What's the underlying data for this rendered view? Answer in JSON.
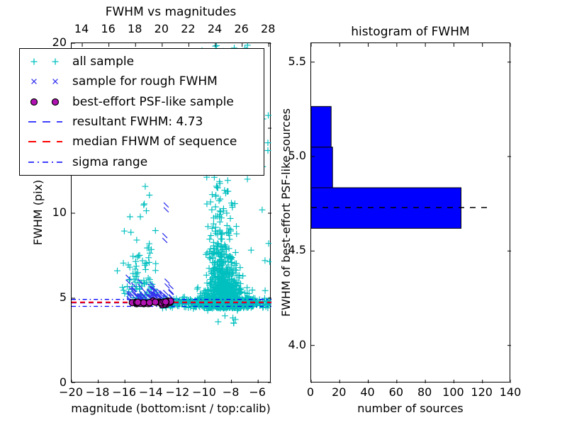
{
  "figure": {
    "background": "#ffffff"
  },
  "chart_data": [
    {
      "type": "scatter",
      "title": "FWHM vs magnitudes",
      "xlabel": "magnitude (bottom:isnt / top:calib)",
      "ylabel": "FWHM (pix)",
      "xlim": [
        -20,
        -5
      ],
      "ylim": [
        0,
        20
      ],
      "xticks": [
        -20,
        -18,
        -16,
        -14,
        -12,
        -10,
        -8,
        -6
      ],
      "xtick_labels": [
        "−20",
        "−18",
        "−16",
        "−14",
        "−12",
        "−10",
        "−8",
        "−6"
      ],
      "yticks": [
        0,
        5,
        10,
        15,
        20
      ],
      "ytick_labels": [
        "0",
        "5",
        "10",
        "15",
        "20"
      ],
      "top_axis": {
        "xlim": [
          13.2,
          28.2
        ],
        "ticks": [
          14,
          16,
          18,
          20,
          22,
          24,
          26,
          28
        ],
        "tick_labels": [
          "14",
          "16",
          "18",
          "20",
          "22",
          "24",
          "26",
          "28"
        ]
      },
      "grid": false,
      "legend_position": "upper left",
      "seed": 20250101,
      "series": [
        {
          "label": "all sample",
          "marker": "plus",
          "color": "#00bfbf",
          "clusters": [
            {
              "n": 620,
              "x": {
                "dist": "normal",
                "mu": -8.55,
                "sigma": 0.8,
                "min": -11.2,
                "max": -5.2
              },
              "y": {
                "dist": "exp",
                "offset": 4.42,
                "scale": 0.6,
                "max": 13
              }
            },
            {
              "n": 300,
              "x": {
                "dist": "normal",
                "mu": -8.7,
                "sigma": 0.55,
                "min": -10.2,
                "max": -6.6
              },
              "y": {
                "dist": "exp",
                "offset": 5.2,
                "scale": 2.2,
                "max": 13.5
              }
            },
            {
              "n": 300,
              "x": {
                "dist": "uniform",
                "min": -13.2,
                "max": -5.1
              },
              "y": {
                "dist": "normal",
                "mu": 4.72,
                "sigma": 0.16,
                "min": 4.25,
                "max": 5.4
              }
            },
            {
              "n": 90,
              "x": {
                "dist": "normal",
                "mu": -14.7,
                "sigma": 0.95,
                "min": -16.6,
                "max": -12.2
              },
              "y": {
                "dist": "exp",
                "offset": 4.9,
                "scale": 1.6,
                "max": 11.8
              }
            },
            {
              "n": 55,
              "x": {
                "dist": "normal",
                "mu": -8.8,
                "sigma": 1.4,
                "min": -11.8,
                "max": -5.3
              },
              "y": {
                "dist": "uniform",
                "min": 12,
                "max": 19.6
              }
            },
            {
              "n": 14,
              "x": {
                "dist": "normal",
                "mu": -8.7,
                "sigma": 1.1,
                "min": -10.8,
                "max": -6.2
              },
              "y": {
                "dist": "uniform",
                "min": 19.3,
                "max": 20.0
              }
            },
            {
              "n": 7,
              "x": {
                "dist": "uniform",
                "min": -10.6,
                "max": -7.2
              },
              "y": {
                "dist": "uniform",
                "min": 3.5,
                "max": 4.3
              }
            },
            {
              "n": 10,
              "x": {
                "dist": "uniform",
                "min": -5.85,
                "max": -5.05
              },
              "y": {
                "dist": "uniform",
                "min": 4.3,
                "max": 16.5
              }
            }
          ],
          "points": []
        },
        {
          "label": "sample for rough FWHM",
          "marker": "cross",
          "color": "#3333ee",
          "clusters": [
            {
              "n": 48,
              "x": {
                "dist": "normal",
                "mu": -14.2,
                "sigma": 1.0,
                "min": -16.3,
                "max": -12.35
              },
              "y": {
                "dist": "exp",
                "offset": 4.78,
                "scale": 0.28,
                "max": 5.75
              }
            }
          ],
          "points": [
            [
              -12.9,
              10.2
            ],
            [
              -13.0,
              8.4
            ],
            [
              -15.75,
              5.95
            ],
            [
              -12.55,
              5.4
            ],
            [
              -14.85,
              5.7
            ]
          ]
        },
        {
          "label": "best-effort PSF-like sample",
          "marker": "circle",
          "color": "#b312b3",
          "edge_color": "#000000",
          "clusters": [
            {
              "n": 30,
              "x": {
                "dist": "uniform",
                "min": -15.45,
                "max": -12.55
              },
              "y": {
                "dist": "normal",
                "mu": 4.72,
                "sigma": 0.055,
                "min": 4.6,
                "max": 4.85
              }
            }
          ],
          "points": []
        }
      ],
      "hlines": [
        {
          "label": "resultant FWHM: 4.73",
          "ys": [
            4.73
          ],
          "color": "#0000ff",
          "style": "dashed",
          "width": 1.5
        },
        {
          "label": "median FHWM of sequence",
          "ys": [
            4.76
          ],
          "color": "#ff0000",
          "style": "dashed",
          "width": 2
        },
        {
          "label": "sigma range",
          "ys": [
            4.52,
            4.93
          ],
          "color": "#0000ff",
          "style": "dashdot",
          "width": 1.3
        }
      ]
    },
    {
      "type": "bar",
      "orientation": "horizontal",
      "title": "histogram of FWHM",
      "xlabel": "number of sources",
      "ylabel": "FWHM of best-effort PSF-like sources",
      "xlim": [
        0,
        140
      ],
      "ylim": [
        3.8,
        5.6
      ],
      "xticks": [
        0,
        20,
        40,
        60,
        80,
        100,
        120,
        140
      ],
      "xtick_labels": [
        "0",
        "20",
        "40",
        "60",
        "80",
        "100",
        "120",
        "140"
      ],
      "yticks": [
        4.0,
        4.5,
        5.0,
        5.5
      ],
      "ytick_labels": [
        "4.0",
        "4.5",
        "5.0",
        "5.5"
      ],
      "bar_color": "#0000ff",
      "bar_edge_color": "#000000",
      "bins": [
        {
          "y0": 4.62,
          "y1": 4.835,
          "count": 105
        },
        {
          "y0": 4.835,
          "y1": 5.05,
          "count": 15
        },
        {
          "y0": 5.05,
          "y1": 5.265,
          "count": 14
        }
      ],
      "dashed_line": {
        "y": 4.73,
        "x_extent": [
          0,
          125
        ],
        "color": "#000000",
        "style": "dashed"
      }
    }
  ]
}
